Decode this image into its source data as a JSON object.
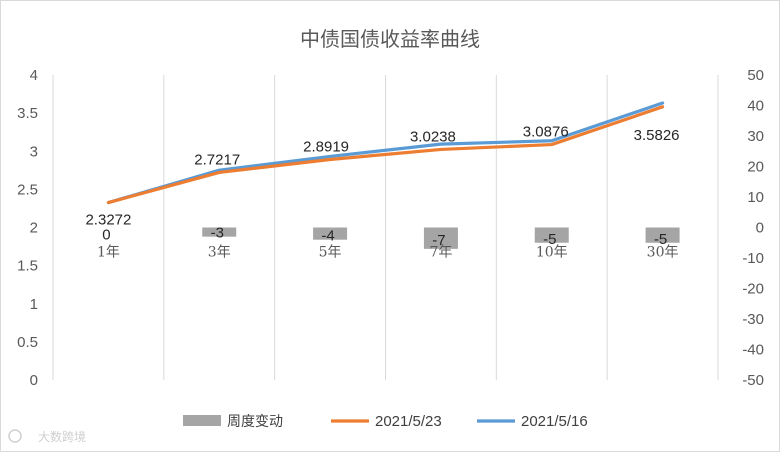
{
  "chart_data": {
    "type": "line",
    "title": "中债国债收益率曲线",
    "categories": [
      "1年",
      "3年",
      "5年",
      "7年",
      "10年",
      "30年"
    ],
    "y_left": {
      "min": 0,
      "max": 4,
      "step": 0.5,
      "ticks": [
        "0",
        "0.5",
        "1",
        "1.5",
        "2",
        "2.5",
        "3",
        "3.5",
        "4"
      ]
    },
    "y_right": {
      "min": -50,
      "max": 50,
      "step": 10,
      "ticks": [
        "-50",
        "-40",
        "-30",
        "-20",
        "-10",
        "0",
        "10",
        "20",
        "30",
        "40",
        "50"
      ]
    },
    "series": [
      {
        "name": "周度变动",
        "type": "bar",
        "axis": "right",
        "color": "#a5a5a5",
        "values": [
          0,
          -3,
          -4,
          -7,
          -5,
          -5
        ],
        "labels": [
          "0",
          "-3",
          "-4",
          "-7",
          "-5",
          "-5"
        ]
      },
      {
        "name": "2021/5/23",
        "type": "line",
        "axis": "left",
        "color": "#ed7d31",
        "values": [
          2.3272,
          2.7217,
          2.8919,
          3.0238,
          3.0876,
          3.5826
        ],
        "labels": [
          "2.3272",
          "2.7217",
          "2.8919",
          "3.0238",
          "3.0876",
          "3.5826"
        ]
      },
      {
        "name": "2021/5/16",
        "type": "line",
        "axis": "left",
        "color": "#5b9bd5",
        "values": [
          2.3272,
          2.7517,
          2.9319,
          3.0938,
          3.1376,
          3.6326
        ]
      }
    ],
    "legend_position": "bottom",
    "grid": "vertical"
  },
  "watermark": "大数跨境"
}
